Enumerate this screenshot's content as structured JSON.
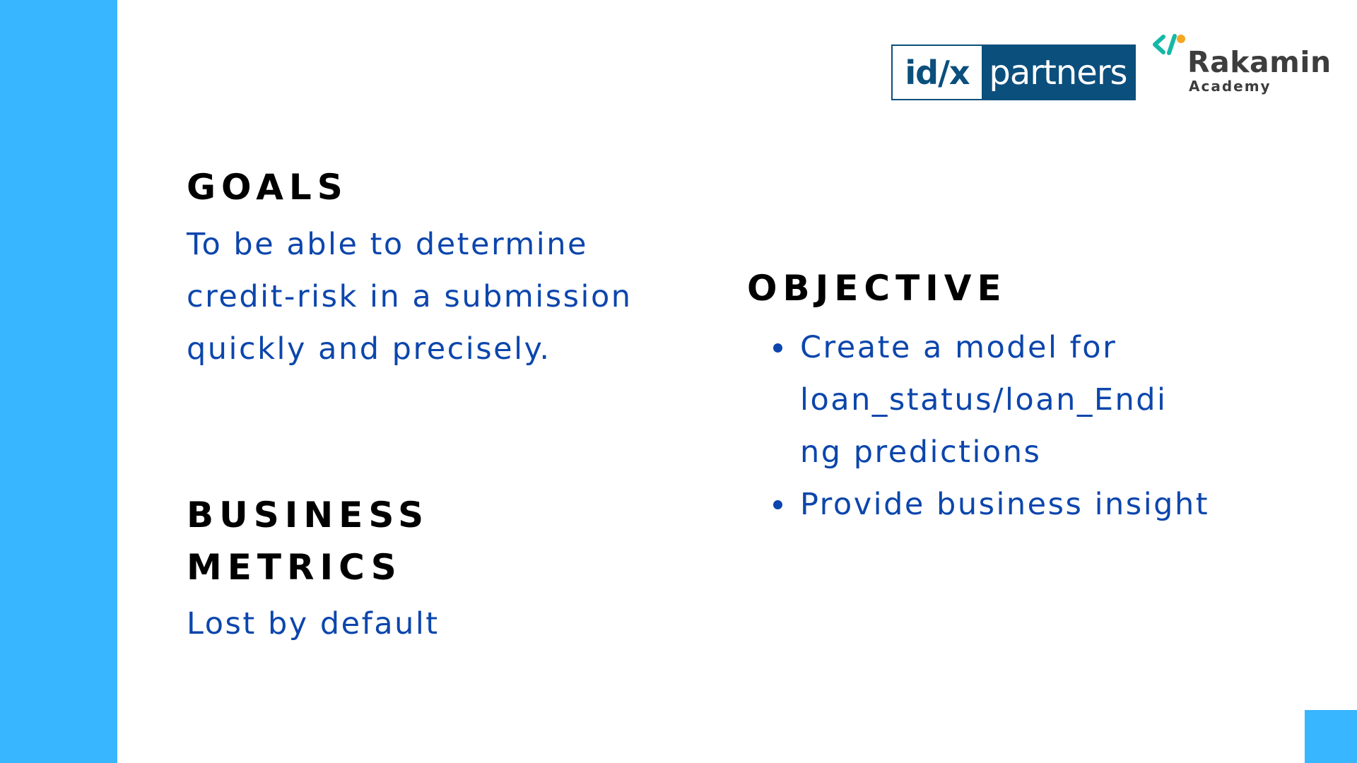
{
  "logos": {
    "idx_left": "id/x",
    "idx_right": "partners",
    "rakamin_name": "Rakamin",
    "rakamin_sub": "Academy"
  },
  "goals": {
    "title": "GOALS",
    "lines": [
      "To be able to determine",
      "credit-risk in a submission",
      "quickly and precisely."
    ]
  },
  "business_metrics": {
    "title_lines": [
      "BUSINESS",
      "METRICS"
    ],
    "text": "Lost by default"
  },
  "objective": {
    "title": "OBJECTIVE",
    "items": [
      {
        "lines": [
          "Create a model for",
          "loan_status/loan_Endi",
          "ng predictions"
        ]
      },
      {
        "lines": [
          "Provide business insight"
        ]
      }
    ]
  },
  "colors": {
    "accent_bar": "#38b6ff",
    "body_text": "#0c46ac",
    "heading": "#000000",
    "idx_brand": "#0b4f7d"
  }
}
